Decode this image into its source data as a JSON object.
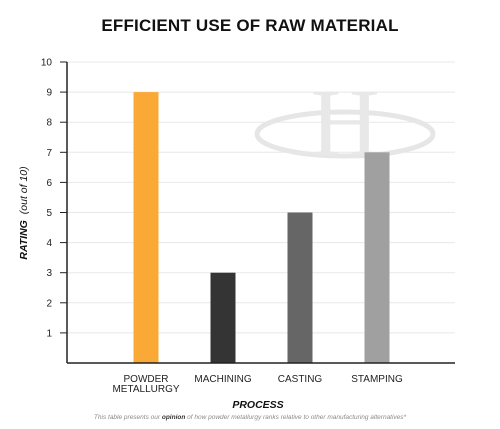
{
  "chart_data": {
    "type": "bar",
    "title": "EFFICIENT USE OF RAW MATERIAL",
    "xlabel": "PROCESS",
    "ylabel": "RATING",
    "ylabel_note": "(out of 10)",
    "categories": [
      "POWDER METALLURGY",
      "MACHINING",
      "CASTING",
      "STAMPING"
    ],
    "category_lines": [
      [
        "POWDER",
        "METALLURGY"
      ],
      [
        "MACHINING"
      ],
      [
        "CASTING"
      ],
      [
        "STAMPING"
      ]
    ],
    "values": [
      9,
      3,
      5,
      7
    ],
    "colors": [
      "#FBA936",
      "#343434",
      "#666666",
      "#A0A0A0"
    ],
    "ylim": [
      0,
      10
    ],
    "yticks": [
      1,
      2,
      3,
      4,
      5,
      6,
      7,
      8,
      9,
      10
    ],
    "grid": true,
    "legend": "none"
  },
  "watermark": {
    "letter": "H",
    "description": "logo watermark"
  },
  "footnote": {
    "before": "This table presents our ",
    "emphasis": "opinion",
    "after": " of how powder metallurgy ranks relative to other manufacturing alternatives*"
  }
}
